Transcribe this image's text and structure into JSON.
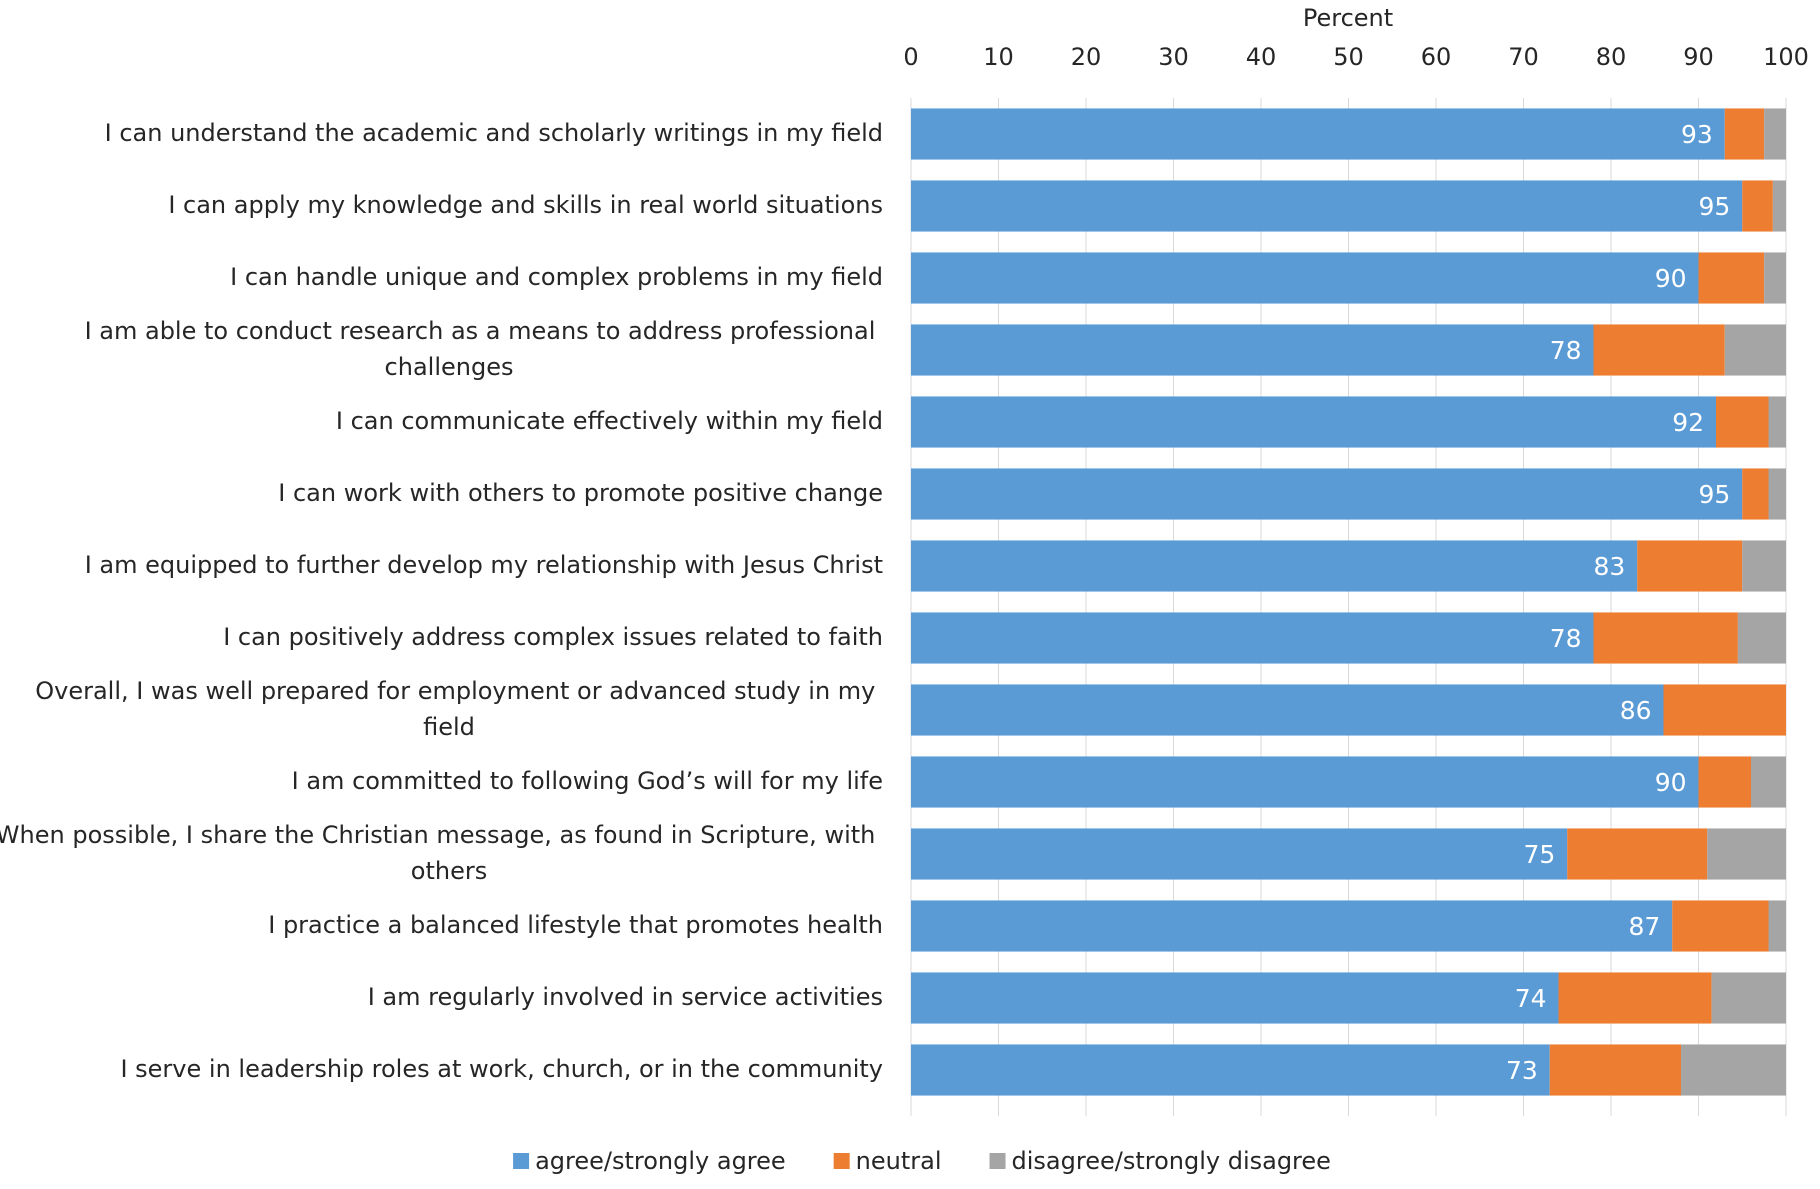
{
  "chart_data": {
    "type": "stacked_barh",
    "xlabel": "Percent",
    "categories": [
      "I can understand the academic and scholarly writings in my field",
      "I can apply my knowledge and skills in real world situations",
      "I can handle unique and complex problems in my field",
      "I am able to conduct research as a means to address professional challenges",
      "I can communicate effectively within my field",
      "I can work with others to promote positive change",
      "I am equipped to further develop my relationship with Jesus Christ",
      "I can positively address complex issues related to faith",
      "Overall, I was well prepared for employment or advanced study in my field",
      "I am committed to following God’s will for my life",
      "When possible, I share the Christian message, as found in Scripture, with others",
      "I practice a balanced lifestyle that promotes health",
      "I am regularly involved in service activities",
      "I serve in leadership roles at work, church, or in the community"
    ],
    "series": [
      {
        "name": "agree/strongly agree",
        "color": "#5b9bd5",
        "data_labels": true,
        "values": [
          93,
          95,
          90,
          78,
          92,
          95,
          83,
          78,
          86,
          90,
          75,
          87,
          74,
          73
        ]
      },
      {
        "name": "neutral",
        "color": "#ed7d31",
        "values": [
          4.5,
          3.5,
          7.5,
          15,
          6,
          3,
          12,
          16.5,
          14,
          6,
          16,
          11,
          17.5,
          15
        ]
      },
      {
        "name": "disagree/strongly disagree",
        "color": "#a5a5a5",
        "values": [
          2.5,
          1.5,
          2.5,
          7,
          2,
          2,
          5,
          5.5,
          0,
          4,
          9,
          2,
          8.5,
          12
        ]
      }
    ],
    "xlim": [
      0,
      100
    ],
    "xticks": [
      0,
      10,
      20,
      30,
      40,
      50,
      60,
      70,
      80,
      90,
      100
    ],
    "grid": true,
    "legend": "bottom"
  }
}
